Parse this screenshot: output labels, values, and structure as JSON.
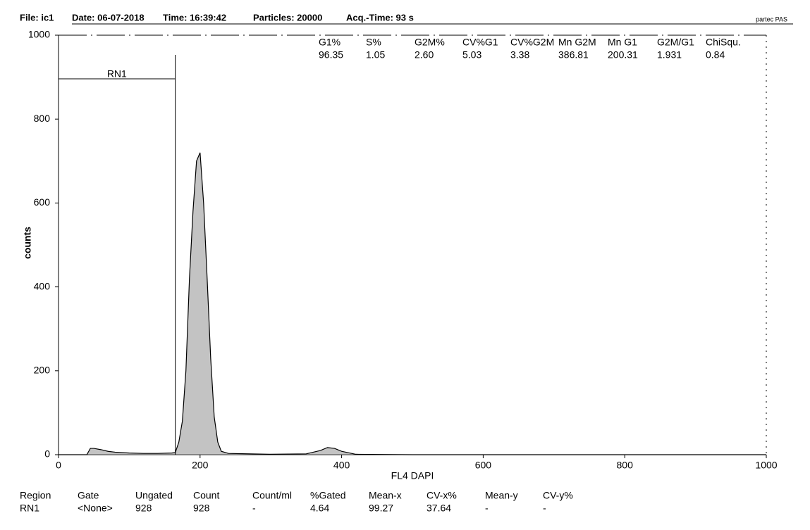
{
  "header": {
    "file": "File: ic1",
    "date": "Date: 06-07-2018",
    "time": "Time: 16:39:42",
    "particles": "Particles: 20000",
    "acq_time": "Acq.-Time: 93 s",
    "brand": "partec PAS"
  },
  "chart_data": {
    "type": "line",
    "x_label": "FL4  DAPI",
    "y_label": "counts",
    "x": [
      0,
      40,
      45,
      50,
      60,
      70,
      80,
      100,
      120,
      140,
      160,
      165,
      170,
      175,
      180,
      185,
      190,
      195,
      200,
      205,
      210,
      215,
      220,
      225,
      230,
      240,
      300,
      350,
      370,
      380,
      390,
      400,
      420,
      500,
      1000
    ],
    "series": [
      {
        "name": "counts",
        "color": "#000000",
        "values": [
          0,
          0,
          15,
          15,
          12,
          8,
          6,
          4,
          3,
          3,
          4,
          5,
          30,
          80,
          200,
          420,
          580,
          700,
          720,
          600,
          420,
          230,
          90,
          30,
          8,
          3,
          1,
          2,
          10,
          17,
          15,
          8,
          1,
          0,
          0
        ]
      }
    ],
    "xlim": [
      0,
      1000
    ],
    "ylim": [
      0,
      1000
    ],
    "xticks": [
      0,
      200,
      400,
      600,
      800,
      1000
    ],
    "yticks": [
      0,
      200,
      400,
      600,
      800,
      1000
    ],
    "regions": [
      {
        "name": "RN1",
        "x": [
          0,
          165
        ],
        "y": 896,
        "top": 953
      }
    ]
  },
  "fit_table": {
    "headers": [
      "G1%",
      "S%",
      "G2M%",
      "CV%G1",
      "CV%G2M",
      "Mn G2M",
      "Mn G1",
      "G2M/G1",
      "ChiSqu."
    ],
    "values": [
      "96.35",
      "1.05",
      "2.60",
      "5.03",
      "3.38",
      "386.81",
      "200.31",
      "1.931",
      "0.84"
    ]
  },
  "stats_table": {
    "headers": [
      "Region",
      "Gate",
      "Ungated",
      "Count",
      "Count/ml",
      "%Gated",
      "Mean-x",
      "CV-x%",
      "Mean-y",
      "CV-y%"
    ],
    "rows": [
      [
        "RN1",
        "<None>",
        "928",
        "928",
        "-",
        "4.64",
        "99.27",
        "37.64",
        "-",
        "-"
      ]
    ]
  }
}
